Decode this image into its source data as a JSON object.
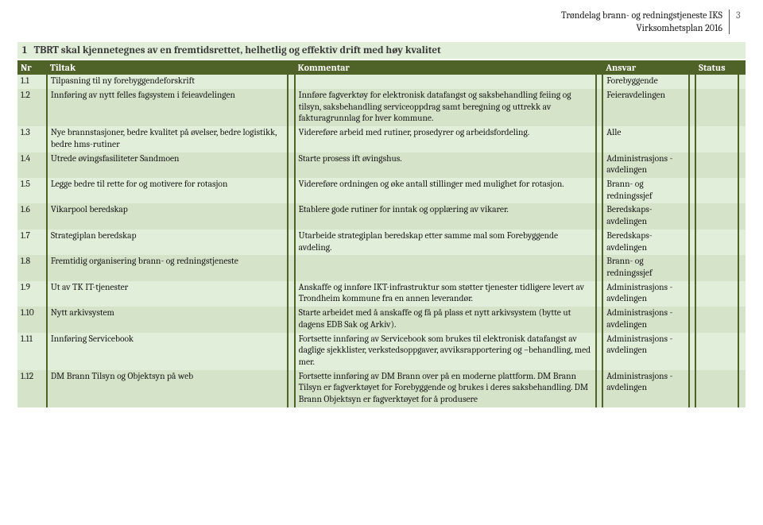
{
  "header": {
    "org": "Trøndelag brann- og redningstjeneste IKS",
    "doc": "Virksomhetsplan 2016",
    "page": "3"
  },
  "section": {
    "num": "1",
    "title": "TBRT skal kjennetegnes av en fremtidsrettet, helhetlig og effektiv drift med høy kvalitet"
  },
  "columns": {
    "nr": "Nr",
    "tiltak": "Tiltak",
    "kommentar": "Kommentar",
    "ansvar": "Ansvar",
    "status": "Status"
  },
  "rows": [
    {
      "nr": "1.1",
      "tiltak": "Tilpasning til ny forebyggendeforskrift",
      "kommentar": "",
      "ansvar": "Forebyggende"
    },
    {
      "nr": "1.2",
      "tiltak": "Innføring av nytt felles fagsystem i feieavdelingen",
      "kommentar": "Innføre fagverktøy for elektronisk datafangst og saksbehandling feiing og tilsyn, saksbehandling serviceoppdrag samt beregning og uttrekk av fakturagrunnlag for hver kommune.",
      "ansvar": "Feieravdelingen"
    },
    {
      "nr": "1.3",
      "tiltak": "Nye brannstasjoner, bedre kvalitet på øvelser, bedre logistikk, bedre hms-rutiner",
      "kommentar": "Videreføre arbeid med rutiner, prosedyrer og arbeidsfordeling.",
      "ansvar": "Alle"
    },
    {
      "nr": "1.4",
      "tiltak": "Utrede øvingsfasiliteter Sandmoen",
      "kommentar": "Starte prosess ift øvingshus.",
      "ansvar": "Administrasjons -avdelingen"
    },
    {
      "nr": "1.5",
      "tiltak": "Legge bedre til rette for og motivere for rotasjon",
      "kommentar": "Videreføre ordningen og øke antall stillinger med mulighet for rotasjon.",
      "ansvar": "Brann- og redningssjef"
    },
    {
      "nr": "1.6",
      "tiltak": "Vikarpool beredskap",
      "kommentar": "Etablere gode rutiner for inntak og opplæring av vikarer.",
      "ansvar": "Beredskaps- avdelingen"
    },
    {
      "nr": "1.7",
      "tiltak": "Strategiplan beredskap",
      "kommentar": "Utarbeide strategiplan beredskap etter samme mal som Forebyggende avdeling.",
      "ansvar": "Beredskaps- avdelingen"
    },
    {
      "nr": "1.8",
      "tiltak": "Fremtidig organisering brann- og redningstjeneste",
      "kommentar": "",
      "ansvar": "Brann- og redningssjef"
    },
    {
      "nr": "1.9",
      "tiltak": "Ut av TK IT-tjenester",
      "kommentar": "Anskaffe og innføre IKT-infrastruktur som støtter tjenester tidligere levert av Trondheim kommune fra en annen leverandør.",
      "ansvar": "Administrasjons -avdelingen"
    },
    {
      "nr": "1.10",
      "tiltak": "Nytt arkivsystem",
      "kommentar": "Starte arbeidet med å anskaffe og få på plass et nytt arkivsystem (bytte ut dagens EDB Sak og Arkiv).",
      "ansvar": "Administrasjons -avdelingen"
    },
    {
      "nr": "1.11",
      "tiltak": "Innføring Servicebook",
      "kommentar": "Fortsette innføring av Servicebook som brukes til elektronisk datafangst av daglige sjekklister, verkstedsoppgaver, avviksrapportering og –behandling, med mer.",
      "ansvar": "Administrasjons -avdelingen"
    },
    {
      "nr": "1.12",
      "tiltak": "DM Brann Tilsyn og Objektsyn på web",
      "kommentar": "Fortsette innføring av DM Brann over på en moderne plattform. DM Brann Tilsyn er fagverktøyet for Forebyggende og brukes i deres saksbehandling. DM Brann Objektsyn er fagverktøyet for å produsere",
      "ansvar": "Administrasjons -avdelingen"
    }
  ],
  "colors": {
    "header_bg": "#4f6228",
    "row_odd": "#e1eed9",
    "row_even": "#d5e3c8",
    "border": "#4f6228"
  }
}
